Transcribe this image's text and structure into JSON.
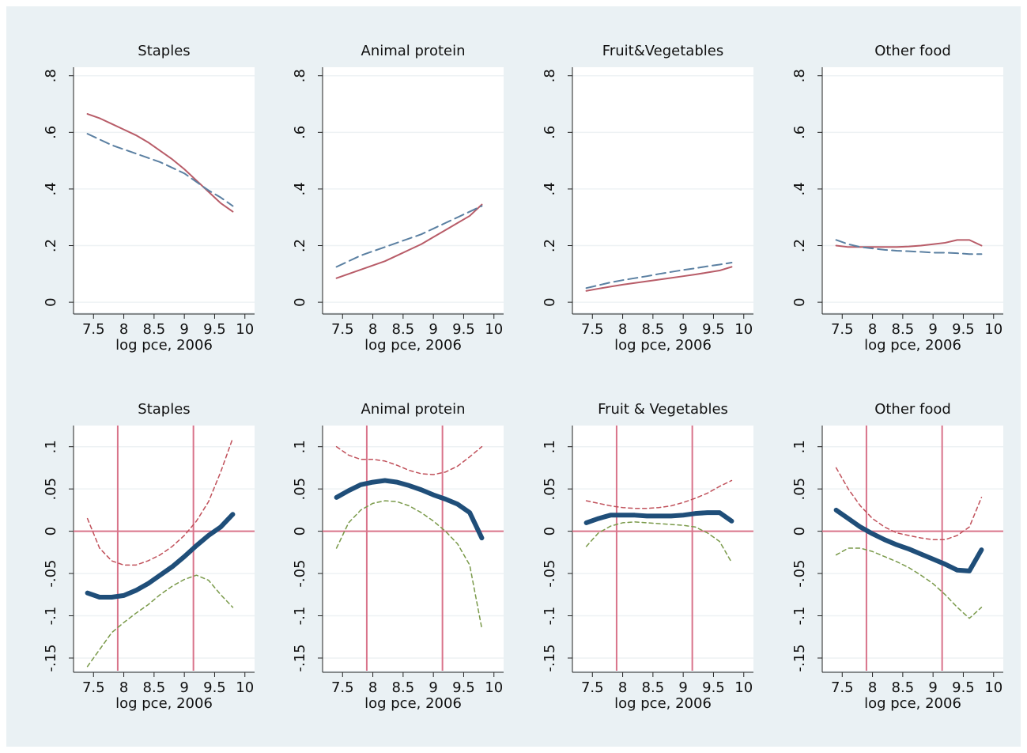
{
  "chart_data": [
    {
      "type": "line",
      "title": "Staples",
      "xlabel": "log pce, 2006",
      "x": [
        7.4,
        7.6,
        7.8,
        8.0,
        8.2,
        8.4,
        8.6,
        8.8,
        9.0,
        9.2,
        9.4,
        9.6,
        9.8
      ],
      "series": [
        {
          "color": "#b85c68",
          "dash": false,
          "width": 2,
          "values": [
            0.665,
            0.65,
            0.63,
            0.61,
            0.59,
            0.565,
            0.535,
            0.505,
            0.47,
            0.43,
            0.39,
            0.35,
            0.32
          ]
        },
        {
          "color": "#5b80a2",
          "dash": true,
          "width": 2,
          "values": [
            0.595,
            0.575,
            0.555,
            0.54,
            0.525,
            0.51,
            0.495,
            0.475,
            0.455,
            0.425,
            0.395,
            0.37,
            0.34
          ]
        }
      ],
      "xlim": [
        7.17,
        10.16
      ],
      "xticks": [
        7.5,
        8,
        8.5,
        9,
        9.5,
        10
      ],
      "ylim": [
        -0.036,
        0.83
      ],
      "yticks": [
        0,
        {
          "value": 0.2,
          "label": ".2"
        },
        {
          "value": 0.4,
          "label": ".4"
        },
        {
          "value": 0.6,
          "label": ".6"
        },
        {
          "value": 0.8,
          "label": ".8"
        }
      ],
      "grid": true
    },
    {
      "type": "line",
      "title": "Animal protein",
      "xlabel": "log pce, 2006",
      "x": [
        7.4,
        7.6,
        7.8,
        8.0,
        8.2,
        8.4,
        8.6,
        8.8,
        9.0,
        9.2,
        9.4,
        9.6,
        9.8
      ],
      "series": [
        {
          "color": "#b85c68",
          "dash": false,
          "width": 2,
          "values": [
            0.085,
            0.1,
            0.115,
            0.13,
            0.145,
            0.165,
            0.185,
            0.205,
            0.23,
            0.255,
            0.28,
            0.305,
            0.345
          ]
        },
        {
          "color": "#5b80a2",
          "dash": true,
          "width": 2,
          "values": [
            0.125,
            0.145,
            0.165,
            0.18,
            0.195,
            0.21,
            0.225,
            0.24,
            0.26,
            0.28,
            0.3,
            0.32,
            0.34
          ]
        }
      ],
      "xlim": [
        7.17,
        10.16
      ],
      "xticks": [
        7.5,
        8,
        8.5,
        9,
        9.5,
        10
      ],
      "ylim": [
        -0.036,
        0.83
      ],
      "yticks": [
        0,
        {
          "value": 0.2,
          "label": ".2"
        },
        {
          "value": 0.4,
          "label": ".4"
        },
        {
          "value": 0.6,
          "label": ".6"
        },
        {
          "value": 0.8,
          "label": ".8"
        }
      ],
      "grid": true
    },
    {
      "type": "line",
      "title": "Fruit&Vegetables",
      "xlabel": "log pce, 2006",
      "x": [
        7.4,
        7.6,
        7.8,
        8.0,
        8.2,
        8.4,
        8.6,
        8.8,
        9.0,
        9.2,
        9.4,
        9.6,
        9.8
      ],
      "series": [
        {
          "color": "#b85c68",
          "dash": false,
          "width": 2,
          "values": [
            0.04,
            0.048,
            0.055,
            0.062,
            0.068,
            0.074,
            0.08,
            0.086,
            0.092,
            0.098,
            0.105,
            0.112,
            0.125
          ]
        },
        {
          "color": "#5b80a2",
          "dash": true,
          "width": 2,
          "values": [
            0.05,
            0.06,
            0.07,
            0.078,
            0.085,
            0.092,
            0.1,
            0.107,
            0.114,
            0.12,
            0.127,
            0.133,
            0.14
          ]
        }
      ],
      "xlim": [
        7.17,
        10.16
      ],
      "xticks": [
        7.5,
        8,
        8.5,
        9,
        9.5,
        10
      ],
      "ylim": [
        -0.036,
        0.83
      ],
      "yticks": [
        0,
        {
          "value": 0.2,
          "label": ".2"
        },
        {
          "value": 0.4,
          "label": ".4"
        },
        {
          "value": 0.6,
          "label": ".6"
        },
        {
          "value": 0.8,
          "label": ".8"
        }
      ],
      "grid": true
    },
    {
      "type": "line",
      "title": "Other food",
      "xlabel": "log pce, 2006",
      "x": [
        7.4,
        7.6,
        7.8,
        8.0,
        8.2,
        8.4,
        8.6,
        8.8,
        9.0,
        9.2,
        9.4,
        9.6,
        9.8
      ],
      "series": [
        {
          "color": "#b85c68",
          "dash": false,
          "width": 2,
          "values": [
            0.2,
            0.195,
            0.195,
            0.195,
            0.195,
            0.195,
            0.197,
            0.2,
            0.205,
            0.21,
            0.22,
            0.22,
            0.2
          ]
        },
        {
          "color": "#5b80a2",
          "dash": true,
          "width": 2,
          "values": [
            0.22,
            0.205,
            0.195,
            0.19,
            0.185,
            0.182,
            0.18,
            0.178,
            0.175,
            0.175,
            0.173,
            0.17,
            0.17
          ]
        }
      ],
      "xlim": [
        7.17,
        10.16
      ],
      "xticks": [
        7.5,
        8,
        8.5,
        9,
        9.5,
        10
      ],
      "ylim": [
        -0.036,
        0.83
      ],
      "yticks": [
        0,
        {
          "value": 0.2,
          "label": ".2"
        },
        {
          "value": 0.4,
          "label": ".4"
        },
        {
          "value": 0.6,
          "label": ".6"
        },
        {
          "value": 0.8,
          "label": ".8"
        }
      ],
      "grid": true
    },
    {
      "type": "line",
      "title": "Staples",
      "xlabel": "log pce, 2006",
      "x": [
        7.4,
        7.6,
        7.8,
        8.0,
        8.2,
        8.4,
        8.6,
        8.8,
        9.0,
        9.2,
        9.4,
        9.6,
        9.8
      ],
      "series": [
        {
          "color": "#1f4e79",
          "dash": false,
          "width": 6,
          "values": [
            -0.073,
            -0.078,
            -0.078,
            -0.076,
            -0.07,
            -0.062,
            -0.052,
            -0.042,
            -0.03,
            -0.017,
            -0.005,
            0.005,
            0.02
          ]
        },
        {
          "color": "#c0505a",
          "dash": true,
          "width": 1.5,
          "values": [
            0.015,
            -0.02,
            -0.035,
            -0.04,
            -0.04,
            -0.035,
            -0.028,
            -0.018,
            -0.005,
            0.012,
            0.035,
            0.07,
            0.11
          ]
        },
        {
          "color": "#7a9a4a",
          "dash": true,
          "width": 1.5,
          "values": [
            -0.16,
            -0.14,
            -0.12,
            -0.108,
            -0.097,
            -0.087,
            -0.075,
            -0.065,
            -0.057,
            -0.052,
            -0.058,
            -0.075,
            -0.09
          ]
        }
      ],
      "xlim": [
        7.17,
        10.16
      ],
      "xticks": [
        7.5,
        8,
        8.5,
        9,
        9.5,
        10
      ],
      "ylim": [
        -0.165,
        0.125
      ],
      "yticks": [
        {
          "value": -0.15,
          "label": "-.15"
        },
        {
          "value": -0.1,
          "label": "-.1"
        },
        {
          "value": -0.05,
          "label": "-.05"
        },
        0,
        {
          "value": 0.05,
          "label": ".05"
        },
        {
          "value": 0.1,
          "label": ".1"
        }
      ],
      "grid": true,
      "xlines": [
        7.9,
        9.15
      ],
      "hlines": [
        0
      ],
      "refline_color": "#d9738a"
    },
    {
      "type": "line",
      "title": "Animal protein",
      "xlabel": "log pce, 2006",
      "x": [
        7.4,
        7.6,
        7.8,
        8.0,
        8.2,
        8.4,
        8.6,
        8.8,
        9.0,
        9.2,
        9.4,
        9.6,
        9.8
      ],
      "series": [
        {
          "color": "#1f4e79",
          "dash": false,
          "width": 6,
          "values": [
            0.04,
            0.048,
            0.055,
            0.058,
            0.06,
            0.058,
            0.054,
            0.049,
            0.043,
            0.038,
            0.032,
            0.022,
            -0.008
          ]
        },
        {
          "color": "#c0505a",
          "dash": true,
          "width": 1.5,
          "values": [
            0.1,
            0.09,
            0.085,
            0.085,
            0.083,
            0.078,
            0.072,
            0.068,
            0.067,
            0.07,
            0.077,
            0.088,
            0.1
          ]
        },
        {
          "color": "#7a9a4a",
          "dash": true,
          "width": 1.5,
          "values": [
            -0.02,
            0.01,
            0.025,
            0.033,
            0.036,
            0.035,
            0.03,
            0.022,
            0.012,
            0.0,
            -0.015,
            -0.04,
            -0.115
          ]
        }
      ],
      "xlim": [
        7.17,
        10.16
      ],
      "xticks": [
        7.5,
        8,
        8.5,
        9,
        9.5,
        10
      ],
      "ylim": [
        -0.165,
        0.125
      ],
      "yticks": [
        {
          "value": -0.15,
          "label": "-.15"
        },
        {
          "value": -0.1,
          "label": "-.1"
        },
        {
          "value": -0.05,
          "label": "-.05"
        },
        0,
        {
          "value": 0.05,
          "label": ".05"
        },
        {
          "value": 0.1,
          "label": ".1"
        }
      ],
      "grid": true,
      "xlines": [
        7.9,
        9.15
      ],
      "hlines": [
        0
      ],
      "refline_color": "#d9738a"
    },
    {
      "type": "line",
      "title": "Fruit & Vegetables",
      "xlabel": "log pce, 2006",
      "x": [
        7.4,
        7.6,
        7.8,
        8.0,
        8.2,
        8.4,
        8.6,
        8.8,
        9.0,
        9.2,
        9.4,
        9.6,
        9.8
      ],
      "series": [
        {
          "color": "#1f4e79",
          "dash": false,
          "width": 6,
          "values": [
            0.01,
            0.015,
            0.019,
            0.019,
            0.019,
            0.018,
            0.018,
            0.018,
            0.019,
            0.021,
            0.022,
            0.022,
            0.012
          ]
        },
        {
          "color": "#c0505a",
          "dash": true,
          "width": 1.5,
          "values": [
            0.036,
            0.033,
            0.03,
            0.028,
            0.027,
            0.027,
            0.028,
            0.03,
            0.034,
            0.039,
            0.045,
            0.053,
            0.06
          ]
        },
        {
          "color": "#7a9a4a",
          "dash": true,
          "width": 1.5,
          "values": [
            -0.018,
            -0.002,
            0.006,
            0.01,
            0.011,
            0.01,
            0.009,
            0.008,
            0.007,
            0.005,
            -0.002,
            -0.012,
            -0.037
          ]
        }
      ],
      "xlim": [
        7.17,
        10.16
      ],
      "xticks": [
        7.5,
        8,
        8.5,
        9,
        9.5,
        10
      ],
      "ylim": [
        -0.165,
        0.125
      ],
      "yticks": [
        {
          "value": -0.15,
          "label": "-.15"
        },
        {
          "value": -0.1,
          "label": "-.1"
        },
        {
          "value": -0.05,
          "label": "-.05"
        },
        0,
        {
          "value": 0.05,
          "label": ".05"
        },
        {
          "value": 0.1,
          "label": ".1"
        }
      ],
      "grid": true,
      "xlines": [
        7.9,
        9.15
      ],
      "hlines": [
        0
      ],
      "refline_color": "#d9738a"
    },
    {
      "type": "line",
      "title": "Other food",
      "xlabel": "log pce, 2006",
      "x": [
        7.4,
        7.6,
        7.8,
        8.0,
        8.2,
        8.4,
        8.6,
        8.8,
        9.0,
        9.2,
        9.4,
        9.6,
        9.8
      ],
      "series": [
        {
          "color": "#1f4e79",
          "dash": false,
          "width": 6,
          "values": [
            0.025,
            0.015,
            0.005,
            -0.003,
            -0.01,
            -0.016,
            -0.021,
            -0.027,
            -0.033,
            -0.039,
            -0.046,
            -0.047,
            -0.022
          ]
        },
        {
          "color": "#c0505a",
          "dash": true,
          "width": 1.5,
          "values": [
            0.075,
            0.05,
            0.03,
            0.015,
            0.005,
            -0.002,
            -0.005,
            -0.008,
            -0.01,
            -0.01,
            -0.005,
            0.005,
            0.04
          ]
        },
        {
          "color": "#7a9a4a",
          "dash": true,
          "width": 1.5,
          "values": [
            -0.028,
            -0.02,
            -0.02,
            -0.024,
            -0.03,
            -0.036,
            -0.043,
            -0.052,
            -0.062,
            -0.075,
            -0.09,
            -0.103,
            -0.09
          ]
        }
      ],
      "xlim": [
        7.17,
        10.16
      ],
      "xticks": [
        7.5,
        8,
        8.5,
        9,
        9.5,
        10
      ],
      "ylim": [
        -0.165,
        0.125
      ],
      "yticks": [
        {
          "value": -0.15,
          "label": "-.15"
        },
        {
          "value": -0.1,
          "label": "-.1"
        },
        {
          "value": -0.05,
          "label": "-.05"
        },
        0,
        {
          "value": 0.05,
          "label": ".05"
        },
        {
          "value": 0.1,
          "label": ".1"
        }
      ],
      "grid": true,
      "xlines": [
        7.9,
        9.15
      ],
      "hlines": [
        0
      ],
      "refline_color": "#d9738a"
    }
  ]
}
